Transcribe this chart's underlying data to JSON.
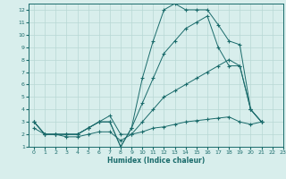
{
  "xlabel": "Humidex (Indice chaleur)",
  "bg_color": "#d8eeec",
  "line_color": "#1a6b6b",
  "grid_color": "#b8d8d4",
  "xlim": [
    -0.5,
    23
  ],
  "ylim": [
    1,
    12.5
  ],
  "yticks": [
    1,
    2,
    3,
    4,
    5,
    6,
    7,
    8,
    9,
    10,
    11,
    12
  ],
  "xticks": [
    0,
    1,
    2,
    3,
    4,
    5,
    6,
    7,
    8,
    9,
    10,
    11,
    12,
    13,
    14,
    15,
    16,
    17,
    18,
    19,
    20,
    21,
    22,
    23
  ],
  "line1_x": [
    0,
    1,
    2,
    3,
    4,
    5,
    6,
    7,
    8,
    9,
    10,
    11,
    12,
    13,
    14,
    15,
    16,
    17,
    18,
    19,
    20,
    21
  ],
  "line1_y": [
    3,
    2,
    2,
    2,
    2,
    2.5,
    3,
    3,
    1,
    2.5,
    6.5,
    9.5,
    12,
    12.5,
    12,
    12,
    12,
    10.8,
    9.5,
    9.2,
    4,
    3
  ],
  "line2_x": [
    0,
    1,
    2,
    3,
    4,
    5,
    6,
    7,
    8,
    9,
    10,
    11,
    12,
    13,
    14,
    15,
    16,
    17,
    18,
    19,
    20,
    21
  ],
  "line2_y": [
    3,
    2,
    2,
    2,
    2,
    2.5,
    3,
    3,
    1,
    2.5,
    4.5,
    6.5,
    8.5,
    9.5,
    10.5,
    11,
    11.5,
    9,
    7.5,
    7.5,
    4,
    3
  ],
  "line3_x": [
    0,
    1,
    2,
    3,
    4,
    5,
    6,
    7,
    8,
    9,
    10,
    11,
    12,
    13,
    14,
    15,
    16,
    17,
    18,
    19,
    20,
    21
  ],
  "line3_y": [
    3,
    2,
    2,
    2,
    2,
    2.5,
    3,
    3.5,
    2,
    2,
    3,
    4,
    5,
    5.5,
    6,
    6.5,
    7,
    7.5,
    8,
    7.5,
    4,
    3
  ],
  "line4_x": [
    0,
    1,
    2,
    3,
    4,
    5,
    6,
    7,
    8,
    9,
    10,
    11,
    12,
    13,
    14,
    15,
    16,
    17,
    18,
    19,
    20,
    21
  ],
  "line4_y": [
    2.5,
    2,
    2,
    1.8,
    1.8,
    2,
    2.2,
    2.2,
    1.5,
    2,
    2.2,
    2.5,
    2.6,
    2.8,
    3,
    3.1,
    3.2,
    3.3,
    3.4,
    3,
    2.8,
    3
  ]
}
